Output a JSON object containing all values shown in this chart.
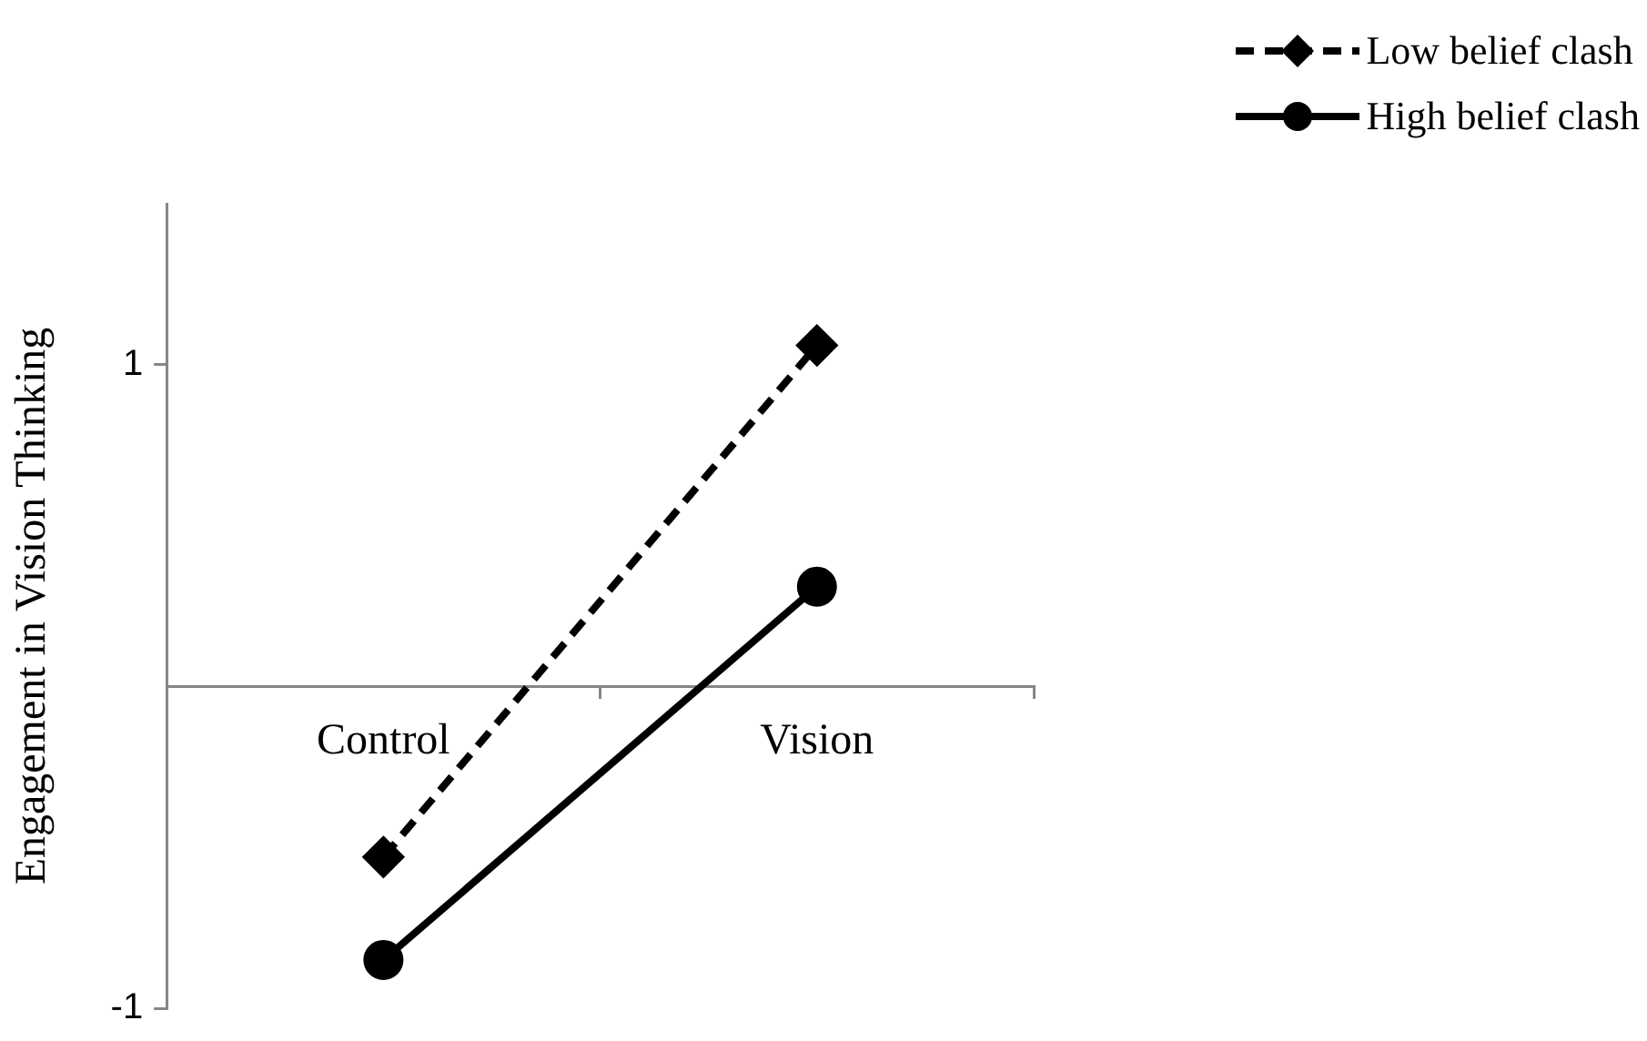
{
  "chart_data": {
    "type": "line",
    "ylabel": "Engagement in Vision Thinking",
    "categories": [
      "Control",
      "Vision"
    ],
    "ylim": [
      -1,
      1.5
    ],
    "yticks": [
      -1,
      1
    ],
    "grid": false,
    "legend": "top right",
    "series": [
      {
        "name": "Low belief clash",
        "color": "#000000",
        "values": [
          -0.53,
          1.06
        ],
        "marker": "diamond",
        "line_style": "dashed"
      },
      {
        "name": "High belief clash",
        "color": "#000000",
        "values": [
          -0.85,
          0.31
        ],
        "marker": "circle",
        "line_style": "solid"
      }
    ]
  }
}
